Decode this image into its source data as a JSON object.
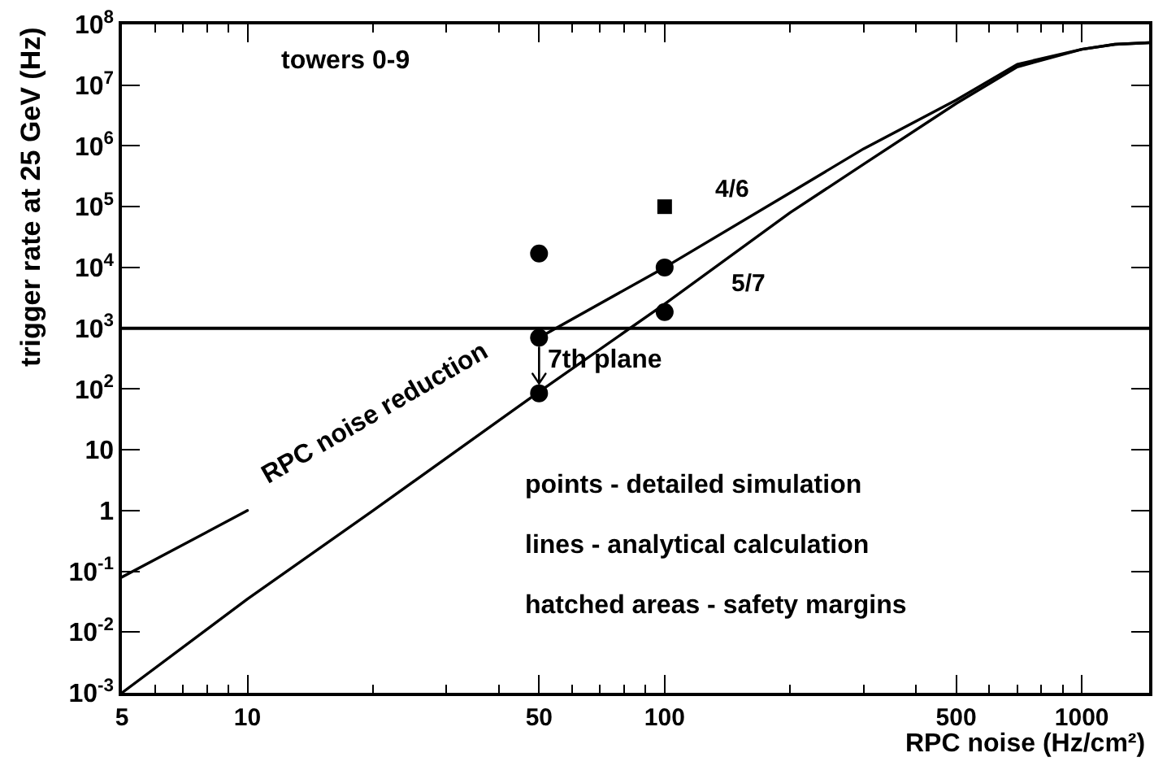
{
  "chart_data": {
    "type": "line",
    "xlabel": "RPC noise (Hz/cm²)",
    "ylabel": "trigger rate at 25 GeV (Hz)",
    "log": "xy",
    "grid": false,
    "line_style": "solid",
    "xlim": [
      5,
      1450
    ],
    "ylim": [
      0.001,
      100000000
    ],
    "xticks": [
      5,
      {
        "value": 6,
        "label": null
      },
      {
        "value": 7,
        "label": null
      },
      {
        "value": 8,
        "label": null
      },
      {
        "value": 9,
        "label": null
      },
      10,
      {
        "value": 20,
        "label": null
      },
      {
        "value": 30,
        "label": null
      },
      {
        "value": 40,
        "label": null
      },
      50,
      {
        "value": 60,
        "label": null
      },
      {
        "value": 70,
        "label": null
      },
      {
        "value": 80,
        "label": null
      },
      {
        "value": 90,
        "label": null
      },
      100,
      {
        "value": 200,
        "label": null
      },
      {
        "value": 300,
        "label": null
      },
      {
        "value": 400,
        "label": null
      },
      500,
      {
        "value": 600,
        "label": null
      },
      {
        "value": 700,
        "label": null
      },
      {
        "value": 800,
        "label": null
      },
      {
        "value": 900,
        "label": null
      },
      1000
    ],
    "yticks": [
      {
        "value": 0.001,
        "label": "10$^{-3}$"
      },
      {
        "value": 0.01,
        "label": "10$^{-2}$"
      },
      {
        "value": 0.1,
        "label": "10$^{-1}$"
      },
      1,
      10,
      {
        "value": 100,
        "label": "10$^{2}$"
      },
      {
        "value": 1000,
        "label": "10$^{3}$"
      },
      {
        "value": 10000,
        "label": "10$^{4}$"
      },
      {
        "value": 100000,
        "label": "10$^{5}$"
      },
      {
        "value": 1000000,
        "label": "10$^{6}$"
      },
      {
        "value": 10000000,
        "label": "10$^{7}$"
      },
      {
        "value": 100000000,
        "label": "10$^{8}$"
      }
    ],
    "series": [
      {
        "name": "4/6",
        "color": "#000000",
        "x": [
          5,
          10,
          20,
          50,
          100,
          200,
          300,
          500,
          700,
          1000,
          1200,
          1450
        ],
        "values": [
          0.08,
          1,
          null,
          700,
          10000,
          170000,
          900000,
          5700000,
          22000000,
          39000000,
          47000000,
          50000000
        ]
      },
      {
        "name": "5/7",
        "color": "#000000",
        "x": [
          5,
          10,
          20,
          50,
          100,
          200,
          300,
          500,
          700,
          1000,
          1200,
          1450
        ],
        "values": [
          0.001,
          0.035,
          1,
          90,
          2500,
          80000,
          500000,
          5000000,
          20000000,
          39000000,
          47000000,
          50000000
        ]
      },
      {
        "type": "scatter",
        "color": "#000000",
        "marker": "circle",
        "x": [
          50,
          50,
          50,
          100,
          100
        ],
        "values": [
          17000,
          700,
          85,
          10000,
          1850
        ]
      },
      {
        "type": "scatter",
        "color": "#000000",
        "marker": "square",
        "x": [
          100
        ],
        "values": [
          100000
        ]
      }
    ],
    "ref_lines": [
      {
        "axis": "y",
        "value": 1000,
        "color": "#000000"
      }
    ],
    "annotations": [
      "towers 0-9",
      "RPC noise reduction",
      "points - detailed simulation",
      "lines - analytical calculation",
      "hatched areas - safety margins",
      {
        "text": "7th plane",
        "x": 50,
        "y": 85
      }
    ]
  }
}
